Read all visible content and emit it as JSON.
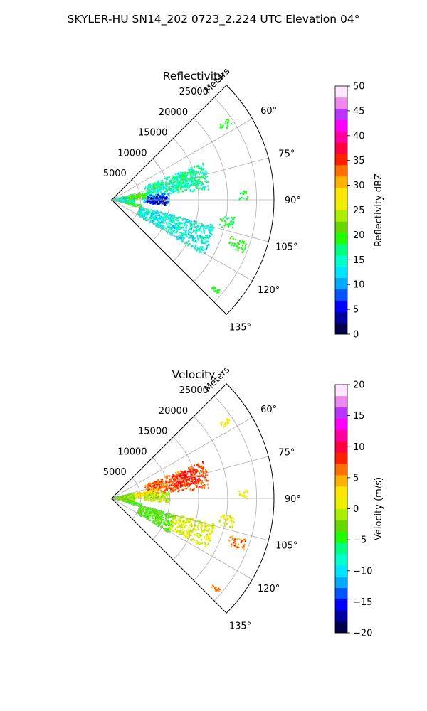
{
  "figure": {
    "suptitle": "SKYLER-HU  SN14_202  0723_2.224 UTC Elevation 04°"
  },
  "chart_data": [
    {
      "type": "polar-ppi",
      "title": "Reflectivity",
      "range_label": "Meters",
      "range_ticks": [
        5000,
        10000,
        15000,
        20000,
        25000
      ],
      "range_tick_labels": [
        "5000",
        "10000",
        "15000",
        "20000",
        "25000"
      ],
      "r_max": 28000,
      "azimuth_range_deg": [
        45,
        135
      ],
      "azimuth_ticks": [
        60,
        75,
        90,
        105,
        120,
        135
      ],
      "azimuth_tick_labels": [
        "60°",
        "75°",
        "90°",
        "105°",
        "120°",
        "135°"
      ],
      "grid": true,
      "colorbar": {
        "label": "Reflectivity dBZ",
        "min": 0,
        "max": 50,
        "ticks": [
          0,
          5,
          10,
          15,
          20,
          25,
          30,
          35,
          40,
          45,
          50
        ],
        "tick_labels": [
          "0",
          "5",
          "10",
          "15",
          "20",
          "25",
          "30",
          "35",
          "40",
          "45",
          "50"
        ]
      },
      "echo_regions": [
        {
          "az": [
            68,
            84
          ],
          "r": [
            6000,
            17000
          ],
          "value_range": [
            12,
            19
          ]
        },
        {
          "az": [
            70,
            80
          ],
          "r": [
            11000,
            15500
          ],
          "value_range": [
            14,
            19
          ]
        },
        {
          "az": [
            83,
            94
          ],
          "r": [
            5500,
            10000
          ],
          "value_range": [
            4,
            13
          ]
        },
        {
          "az": [
            86,
            96
          ],
          "r": [
            6000,
            9500
          ],
          "value_range": [
            0,
            8
          ]
        },
        {
          "az": [
            104,
            121
          ],
          "r": [
            5000,
            18500
          ],
          "value_range": [
            11,
            17
          ]
        },
        {
          "az": [
            75,
            103
          ],
          "r": [
            0,
            4000
          ],
          "value_range": [
            10,
            21
          ]
        },
        {
          "az": [
            78,
            88
          ],
          "r": [
            3000,
            6000
          ],
          "value_range": [
            18,
            23
          ]
        },
        {
          "az": [
            100,
            106
          ],
          "r": [
            2500,
            5500
          ],
          "value_range": [
            17,
            21
          ]
        },
        {
          "az": [
            98,
            104
          ],
          "r": [
            19000,
            21500
          ],
          "value_range": [
            16,
            20
          ]
        },
        {
          "az": [
            107,
            112
          ],
          "r": [
            21500,
            24500
          ],
          "value_range": [
            16,
            22
          ]
        },
        {
          "az": [
            130,
            132
          ],
          "r": [
            23000,
            24500
          ],
          "value_range": [
            17,
            20
          ]
        },
        {
          "az": [
            55,
            58
          ],
          "r": [
            22500,
            24500
          ],
          "value_range": [
            15,
            20
          ]
        },
        {
          "az": [
            86,
            90
          ],
          "r": [
            22000,
            23500
          ],
          "value_range": [
            17,
            20
          ]
        }
      ]
    },
    {
      "type": "polar-ppi",
      "title": "Velocity",
      "range_label": "Meters",
      "range_ticks": [
        5000,
        10000,
        15000,
        20000,
        25000
      ],
      "range_tick_labels": [
        "5000",
        "10000",
        "15000",
        "20000",
        "25000"
      ],
      "r_max": 28000,
      "azimuth_range_deg": [
        45,
        135
      ],
      "azimuth_ticks": [
        60,
        75,
        90,
        105,
        120,
        135
      ],
      "azimuth_tick_labels": [
        "60°",
        "75°",
        "90°",
        "105°",
        "120°",
        "135°"
      ],
      "grid": true,
      "colorbar": {
        "label": "Velocity (m/s)",
        "min": -20,
        "max": 20,
        "ticks": [
          -20,
          -15,
          -10,
          -5,
          0,
          5,
          10,
          15,
          20
        ],
        "tick_labels": [
          "−20",
          "−15",
          "−10",
          "−5",
          "0",
          "5",
          "10",
          "15",
          "20"
        ]
      },
      "echo_regions": [
        {
          "az": [
            68,
            84
          ],
          "r": [
            6000,
            17000
          ],
          "value_range": [
            5,
            9
          ]
        },
        {
          "az": [
            70,
            80
          ],
          "r": [
            11000,
            15500
          ],
          "value_range": [
            7,
            10
          ]
        },
        {
          "az": [
            78,
            90
          ],
          "r": [
            3500,
            8000
          ],
          "value_range": [
            1,
            4
          ]
        },
        {
          "az": [
            83,
            94
          ],
          "r": [
            5500,
            10000
          ],
          "value_range": [
            -3,
            1
          ]
        },
        {
          "az": [
            104,
            121
          ],
          "r": [
            5000,
            11500
          ],
          "value_range": [
            -5,
            -2
          ]
        },
        {
          "az": [
            104,
            118
          ],
          "r": [
            11000,
            18500
          ],
          "value_range": [
            -1,
            2
          ]
        },
        {
          "az": [
            75,
            103
          ],
          "r": [
            0,
            4000
          ],
          "value_range": [
            -4,
            0
          ]
        },
        {
          "az": [
            100,
            106
          ],
          "r": [
            2500,
            5500
          ],
          "value_range": [
            -5,
            -3
          ]
        },
        {
          "az": [
            98,
            104
          ],
          "r": [
            19000,
            21500
          ],
          "value_range": [
            -1,
            3
          ]
        },
        {
          "az": [
            107,
            112
          ],
          "r": [
            21500,
            24500
          ],
          "value_range": [
            4,
            8
          ]
        },
        {
          "az": [
            130,
            132
          ],
          "r": [
            23000,
            24500
          ],
          "value_range": [
            4,
            8
          ]
        },
        {
          "az": [
            55,
            58
          ],
          "r": [
            22500,
            24500
          ],
          "value_range": [
            0,
            3
          ]
        },
        {
          "az": [
            86,
            90
          ],
          "r": [
            22000,
            23500
          ],
          "value_range": [
            -1,
            2
          ]
        }
      ]
    }
  ],
  "colormap_stops": [
    "#00004d",
    "#0000a0",
    "#0000ff",
    "#0055ff",
    "#00aaff",
    "#00e5ff",
    "#00ffcc",
    "#00ff80",
    "#20ff00",
    "#66d800",
    "#aaee00",
    "#eeee00",
    "#ffe600",
    "#ffb000",
    "#ff7000",
    "#ff2000",
    "#ff0040",
    "#ff00a0",
    "#ff00ff",
    "#bb33ff",
    "#ee88ee",
    "#ffe8ff"
  ]
}
